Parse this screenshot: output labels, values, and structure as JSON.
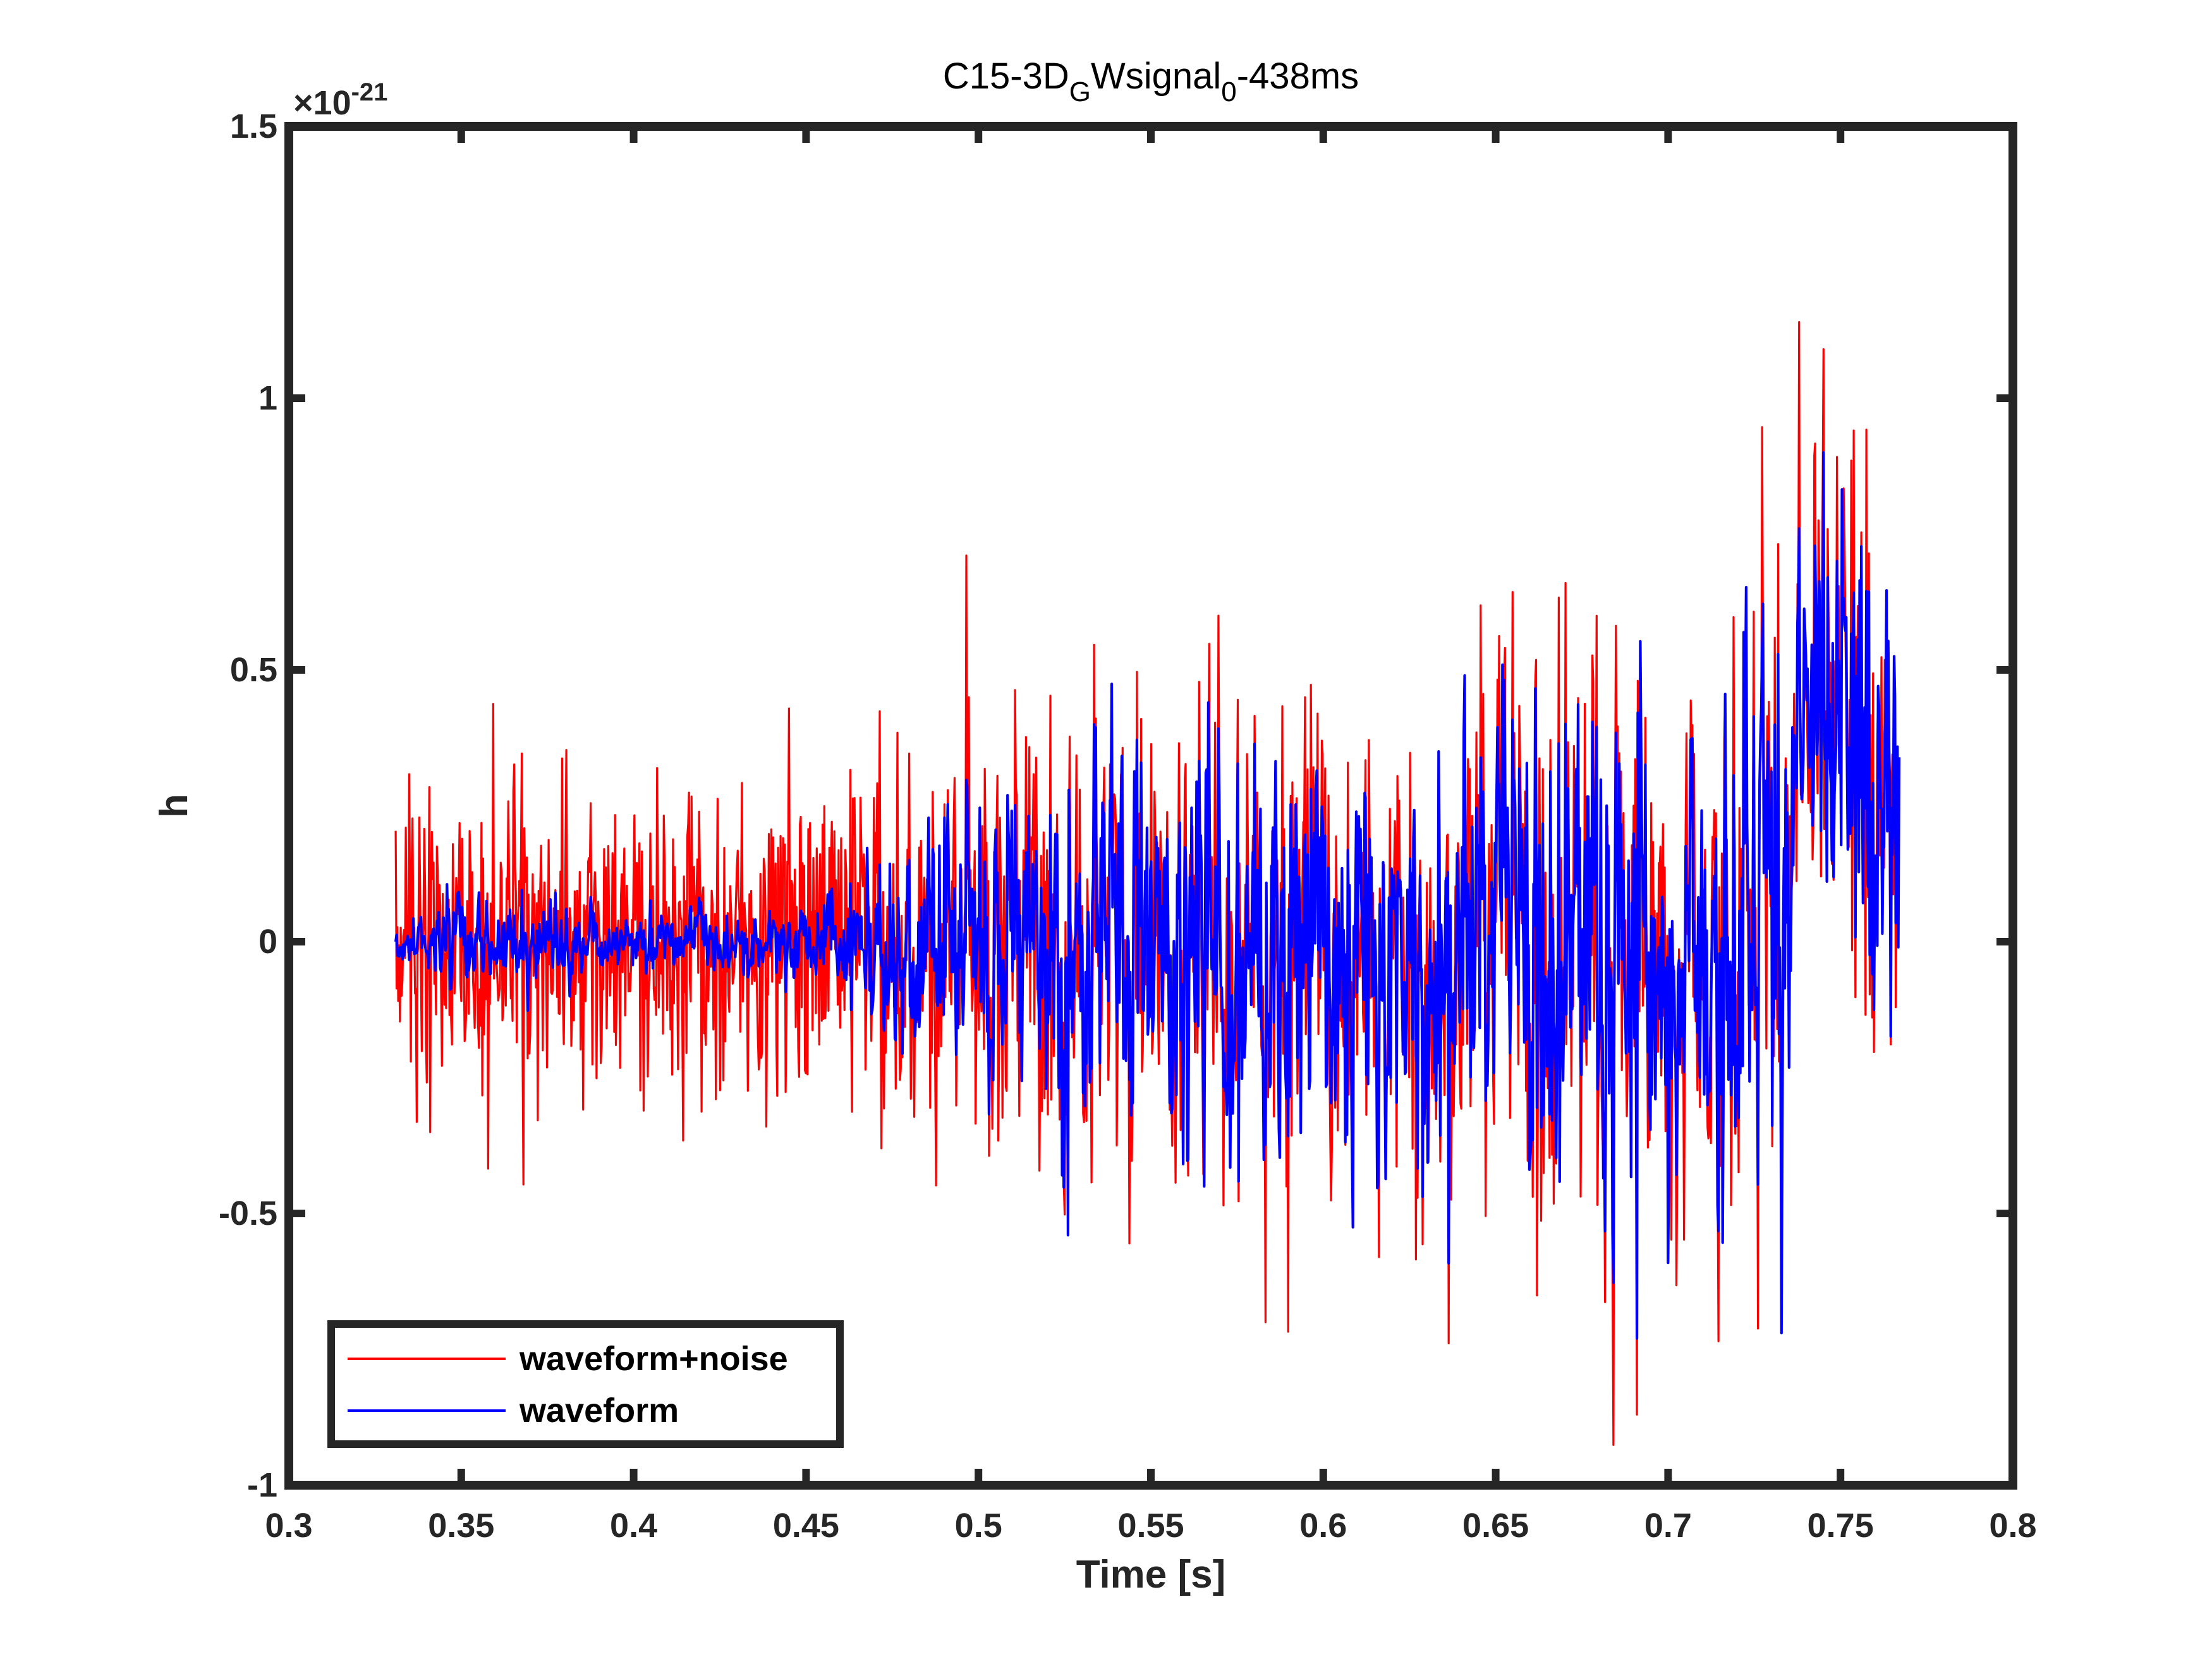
{
  "chart_data": {
    "type": "line",
    "title": {
      "prefix": "C15-3D",
      "sub1": "G",
      "middle": "Wsignal",
      "sub2": "0",
      "suffix": "-438ms"
    },
    "xlabel": "Time [s]",
    "ylabel": "h",
    "exponent_base": "×10",
    "exponent_power": "-21",
    "xlim": [
      0.3,
      0.8
    ],
    "ylim": [
      -1,
      1.5
    ],
    "xticks": [
      0.3,
      0.35,
      0.4,
      0.45,
      0.5,
      0.55,
      0.6,
      0.65,
      0.7,
      0.75,
      0.8
    ],
    "xtick_labels": [
      "0.3",
      "0.35",
      "0.4",
      "0.45",
      "0.5",
      "0.55",
      "0.6",
      "0.65",
      "0.7",
      "0.75",
      "0.8"
    ],
    "yticks": [
      -1,
      -0.5,
      0,
      0.5,
      1,
      1.5
    ],
    "ytick_labels": [
      "-1",
      "-0.5",
      "0",
      "0.5",
      "1",
      "1.5"
    ],
    "legend_location": "bottom-left",
    "t_range": [
      0.331,
      0.767
    ],
    "series": [
      {
        "name": "waveform+noise",
        "color": "#ff0000",
        "noise_std": 0.14
      },
      {
        "name": "waveform",
        "color": "#0000ff",
        "noise_std": 0
      }
    ],
    "envelope": {
      "t": [
        0.331,
        0.35,
        0.4,
        0.45,
        0.47,
        0.5,
        0.52,
        0.55,
        0.6,
        0.65,
        0.7,
        0.73,
        0.735,
        0.74,
        0.75,
        0.767
      ],
      "amp": [
        0.02,
        0.045,
        0.03,
        0.03,
        0.09,
        0.15,
        0.17,
        0.18,
        0.22,
        0.24,
        0.26,
        0.27,
        0.26,
        0.22,
        0.22,
        0.22
      ],
      "offset": [
        0,
        0,
        0,
        0,
        0,
        0,
        0,
        0,
        0,
        0,
        0,
        0,
        0.05,
        0.45,
        0.42,
        0.2
      ]
    },
    "annotated_extremes": [
      {
        "t": 0.738,
        "waveform_noise": 1.14,
        "waveform": 0.76
      },
      {
        "t": 0.745,
        "waveform_noise": 1.09,
        "waveform": 0.9
      },
      {
        "t": 0.691,
        "waveform_noise": -0.87,
        "waveform": -0.73
      },
      {
        "t": 0.733,
        "waveform_noise": -0.72,
        "waveform": -0.72
      },
      {
        "t": 0.526,
        "waveform_noise": -0.54,
        "waveform": -0.54
      }
    ]
  }
}
